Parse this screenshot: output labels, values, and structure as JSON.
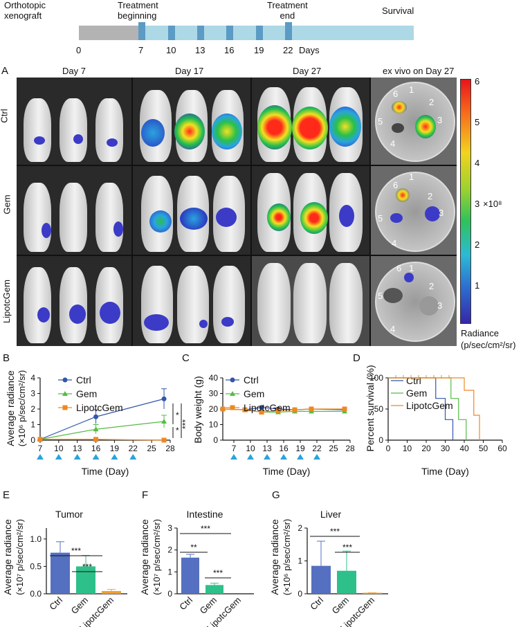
{
  "timeline": {
    "phases": [
      "Orthotopic\nxenograft",
      "Treatment\nbeginning",
      "Treatment\nend",
      "Survival"
    ],
    "phase_labels": {
      "ortho1": "Orthotopic",
      "ortho2": "xenograft",
      "treat1": "Treatment",
      "treat2": "beginning",
      "end1": "Treatment",
      "end2": "end",
      "survival": "Survival"
    },
    "ticks": [
      "0",
      "7",
      "10",
      "13",
      "16",
      "19",
      "22"
    ],
    "days_label": "Days",
    "colors": {
      "pre": "#b3b3b3",
      "treat": "#add8e6",
      "marker": "#5b9bc4"
    }
  },
  "panelA": {
    "letter": "A",
    "col_headers": [
      "Day 7",
      "Day 17",
      "Day 27",
      "ex vivo on Day 27"
    ],
    "row_labels": [
      "Ctrl",
      "Gem",
      "LipotcGem"
    ],
    "organ_numbers": [
      "1",
      "2",
      "3",
      "4",
      "5",
      "6"
    ],
    "colorbar": {
      "ticks": [
        "6",
        "5",
        "4",
        "3",
        "2",
        "1"
      ],
      "unit": "×10⁸",
      "title1": "Radiance",
      "title2": "(p/sec/cm²/sr)"
    }
  },
  "chart_data": [
    {
      "panel": "B",
      "type": "line",
      "ylabel": "Average radiance (×10⁶ p/sec/cm²/sr)",
      "ylabel1": "Average radiance",
      "ylabel2": "(×10⁶ p/sec/cm²/sr)",
      "xlabel": "Time (Day)",
      "xticks": [
        "7",
        "10",
        "13",
        "16",
        "19",
        "22",
        "25",
        "28"
      ],
      "yticks": [
        "0",
        "1",
        "2",
        "3",
        "4"
      ],
      "xlim": [
        7,
        28
      ],
      "ylim": [
        0,
        4
      ],
      "treatment_days": [
        7,
        10,
        13,
        16,
        19,
        22
      ],
      "series": [
        {
          "name": "Ctrl",
          "color": "#3355aa",
          "marker": "circle",
          "x": [
            7,
            16,
            27
          ],
          "y": [
            0.05,
            1.5,
            2.65
          ],
          "err": [
            0,
            0.45,
            0.65
          ]
        },
        {
          "name": "Gem",
          "color": "#55bb44",
          "marker": "triangle",
          "x": [
            7,
            16,
            27
          ],
          "y": [
            0.05,
            0.7,
            1.2
          ],
          "err": [
            0,
            0.3,
            0.4
          ]
        },
        {
          "name": "LipotcGem",
          "color": "#ee8822",
          "marker": "square",
          "x": [
            7,
            16,
            27
          ],
          "y": [
            0.05,
            0.05,
            0.0
          ],
          "err": [
            0,
            0,
            0
          ]
        }
      ],
      "significance": [
        "*",
        "*",
        "***"
      ]
    },
    {
      "panel": "C",
      "type": "line",
      "ylabel": "Body weight (g)",
      "xlabel": "Time (Day)",
      "xticks": [
        "7",
        "10",
        "13",
        "16",
        "19",
        "22",
        "25",
        "28"
      ],
      "yticks": [
        "0",
        "10",
        "20",
        "30",
        "40"
      ],
      "xlim": [
        5,
        28
      ],
      "ylim": [
        0,
        40
      ],
      "treatment_days": [
        7,
        10,
        13,
        16,
        19,
        22
      ],
      "series": [
        {
          "name": "Ctrl",
          "color": "#3355aa",
          "marker": "circle",
          "x": [
            5,
            9,
            12,
            15,
            18,
            21,
            27
          ],
          "y": [
            20,
            19.5,
            21,
            20,
            19.5,
            20,
            19.5
          ]
        },
        {
          "name": "Gem",
          "color": "#55bb44",
          "marker": "triangle",
          "x": [
            5,
            9,
            12,
            15,
            18,
            21,
            27
          ],
          "y": [
            20,
            19.5,
            18,
            18,
            18.5,
            18.5,
            18.5
          ]
        },
        {
          "name": "LipotcGem",
          "color": "#ee8822",
          "marker": "square",
          "x": [
            5,
            9,
            12,
            15,
            18,
            21,
            27
          ],
          "y": [
            20,
            19.5,
            18,
            19,
            19.5,
            20,
            20
          ]
        }
      ]
    },
    {
      "panel": "D",
      "type": "line",
      "subtype": "survival",
      "ylabel": "Percent survival (%)",
      "xlabel": "Time (Day)",
      "xticks": [
        "0",
        "10",
        "20",
        "30",
        "40",
        "50",
        "60"
      ],
      "yticks": [
        "0",
        "50",
        "100"
      ],
      "xlim": [
        0,
        60
      ],
      "ylim": [
        0,
        100
      ],
      "series": [
        {
          "name": "Ctrl",
          "color": "#3355aa",
          "steps": [
            [
              0,
              100
            ],
            [
              25,
              100
            ],
            [
              25,
              67
            ],
            [
              30,
              67
            ],
            [
              30,
              33
            ],
            [
              34,
              33
            ],
            [
              34,
              0
            ]
          ]
        },
        {
          "name": "Gem",
          "color": "#55bb44",
          "steps": [
            [
              0,
              100
            ],
            [
              33,
              100
            ],
            [
              33,
              67
            ],
            [
              37,
              67
            ],
            [
              37,
              33
            ],
            [
              41,
              33
            ],
            [
              41,
              0
            ]
          ]
        },
        {
          "name": "LipotcGem",
          "color": "#ee8822",
          "steps": [
            [
              0,
              100
            ],
            [
              40,
              100
            ],
            [
              40,
              80
            ],
            [
              45,
              80
            ],
            [
              45,
              40
            ],
            [
              48,
              40
            ],
            [
              48,
              0
            ]
          ]
        }
      ],
      "censor_x": [
        4,
        8,
        12,
        16,
        20,
        24,
        28,
        32
      ]
    },
    {
      "panel": "E",
      "type": "bar",
      "title": "Tumor",
      "ylabel1": "Average radiance",
      "ylabel2": "(×10⁷ p/sec/cm²/sr)",
      "categories": [
        "Ctrl",
        "Gem",
        "LipotcGem"
      ],
      "values": [
        0.75,
        0.5,
        0.05
      ],
      "errors": [
        0.2,
        0.2,
        0.03
      ],
      "colors": [
        "#5570c0",
        "#2ec08a",
        "#f0a030"
      ],
      "yticks": [
        "0.0",
        "0.5",
        "1.0"
      ],
      "ylim": [
        0,
        1.2
      ],
      "significance": [
        "***",
        "***"
      ]
    },
    {
      "panel": "F",
      "type": "bar",
      "title": "Intestine",
      "ylabel1": "Average radiance",
      "ylabel2": "(×10⁷ p/sec/cm²/sr)",
      "categories": [
        "Ctrl",
        "Gem",
        "LipotcGem"
      ],
      "values": [
        1.65,
        0.4,
        0.0
      ],
      "errors": [
        0.15,
        0.08,
        0.0
      ],
      "colors": [
        "#5570c0",
        "#2ec08a",
        "#f0a030"
      ],
      "yticks": [
        "0",
        "1",
        "2",
        "3"
      ],
      "ylim": [
        0,
        3
      ],
      "significance": [
        "***",
        "**",
        "***"
      ]
    },
    {
      "panel": "G",
      "type": "bar",
      "title": "Liver",
      "ylabel1": "Average radiance",
      "ylabel2": "(×10⁶ p/sec/cm²/sr)",
      "categories": [
        "Ctrl",
        "Gem",
        "LipotcGem"
      ],
      "values": [
        0.85,
        0.7,
        0.02
      ],
      "errors": [
        0.75,
        0.6,
        0.01
      ],
      "colors": [
        "#5570c0",
        "#2ec08a",
        "#f0a030"
      ],
      "yticks": [
        "0",
        "1",
        "2"
      ],
      "ylim": [
        0,
        2
      ],
      "significance": [
        "***",
        "***"
      ]
    }
  ]
}
